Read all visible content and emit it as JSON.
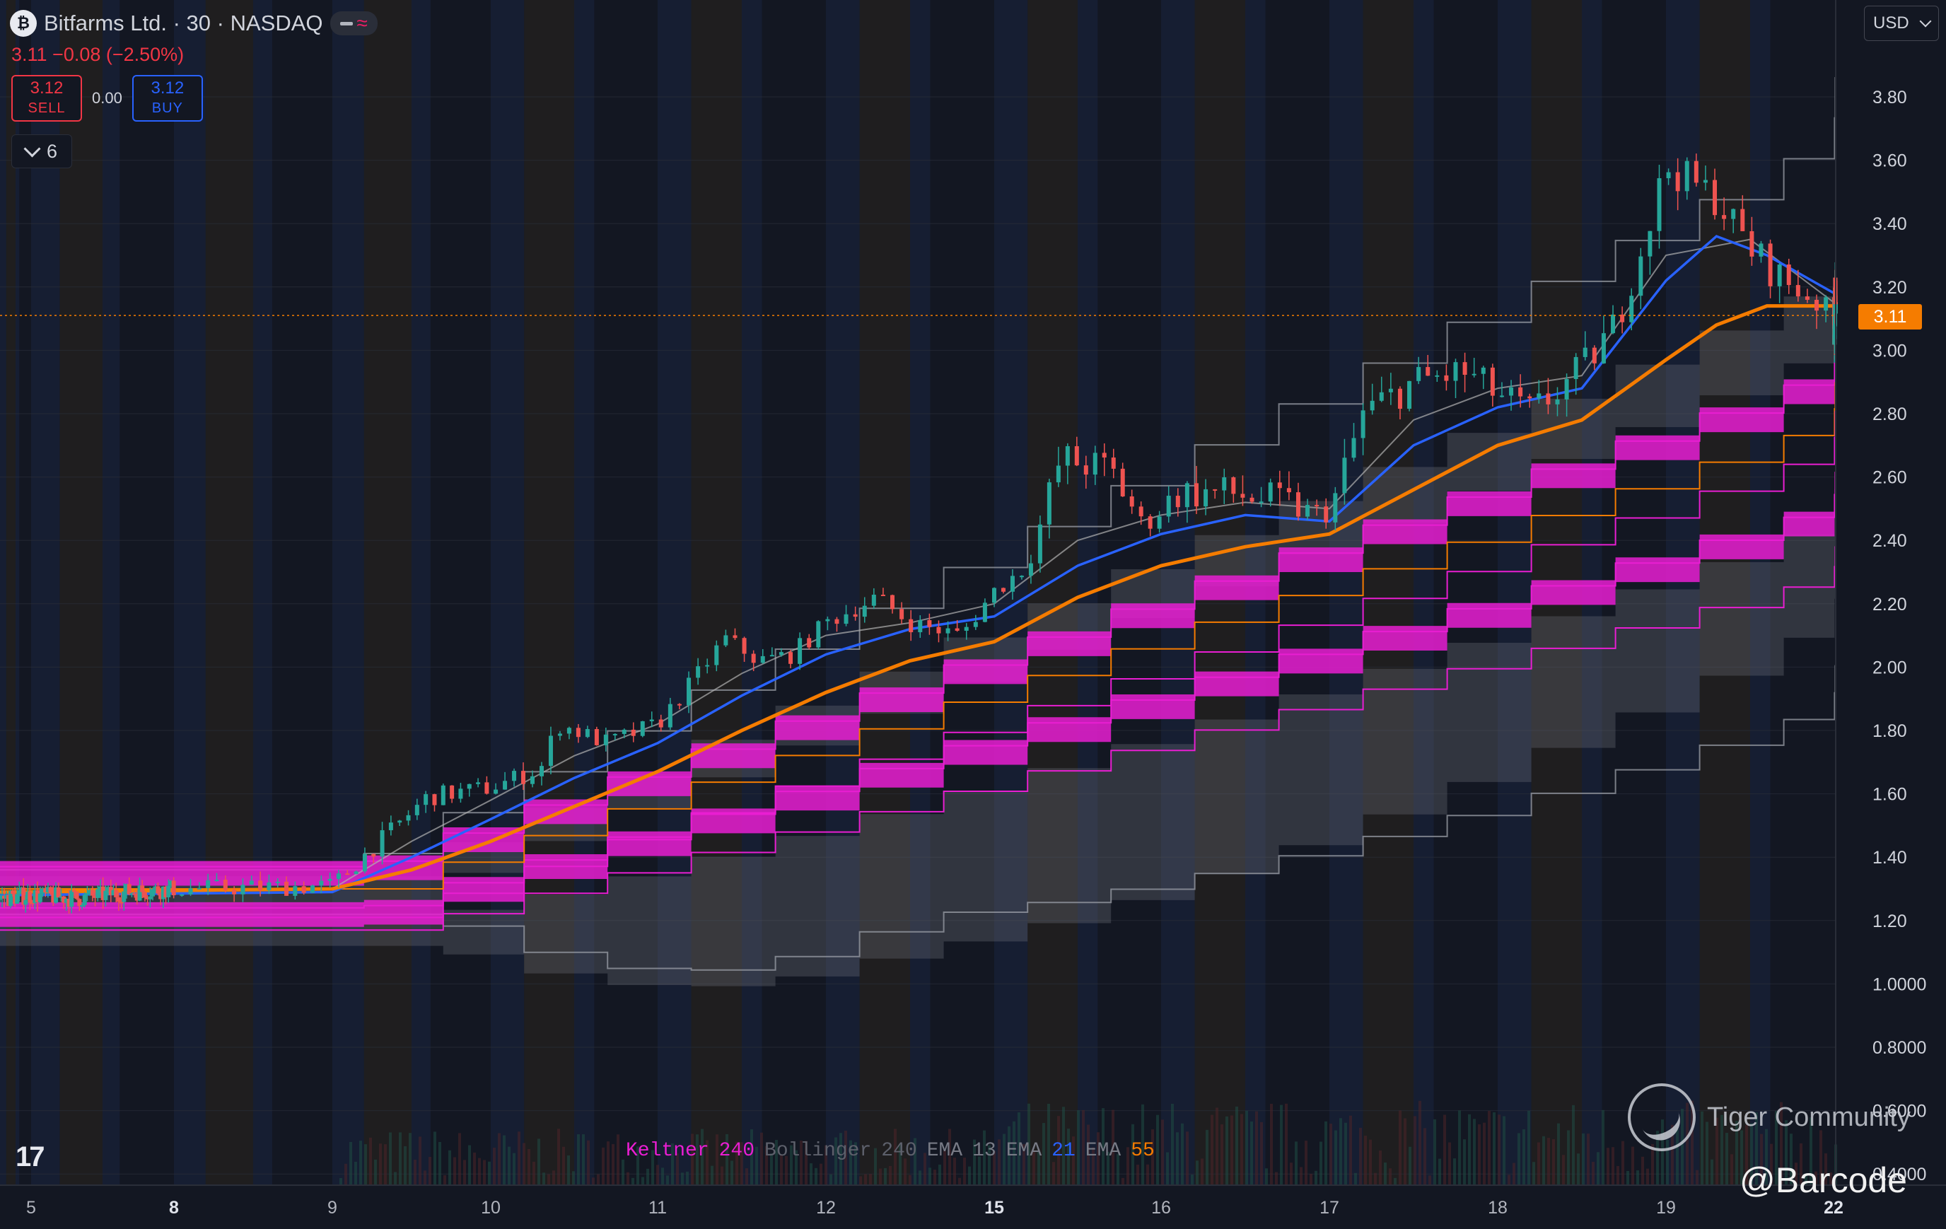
{
  "header": {
    "title": "Bitfarms Ltd. · 30 · NASDAQ",
    "change_text": "3.11 −0.08 (−2.50%)",
    "sell_price": "3.12",
    "sell_label": "SELL",
    "spread": "0.00",
    "buy_price": "3.12",
    "buy_label": "BUY",
    "indicators_count": "6",
    "currency": "USD"
  },
  "icons": {
    "logo": "bitfarms-logo-icon",
    "minus": "minus-icon",
    "wave": "approx-icon",
    "chevron": "chevron-down-icon",
    "tradingview": "tradingview-logo-icon",
    "tiger": "tiger-community-logo-icon"
  },
  "watermark": {
    "brand": "Tiger Community",
    "handle": "@Barcode"
  },
  "colors": {
    "background": "#131722",
    "up": "#26a69a",
    "down": "#ef5350",
    "keltner": "#e91ed2",
    "bollinger": "#9e9e9e",
    "ema13": "#b0b0b0",
    "ema21": "#2962ff",
    "ema55": "#f57c00",
    "last_price": "#f57c00",
    "session_odd": "#1a2440",
    "session_even": "#2a241e"
  },
  "legend": [
    {
      "name": "Keltner",
      "value": "240",
      "name_color": "#e91ed2",
      "value_color": "#e91ed2"
    },
    {
      "name": "Bollinger",
      "value": "240",
      "name_color": "#5d606b",
      "value_color": "#5d606b"
    },
    {
      "name": "EMA",
      "value": "13",
      "name_color": "#787b86",
      "value_color": "#787b86"
    },
    {
      "name": "EMA",
      "value": "21",
      "name_color": "#787b86",
      "value_color": "#2962ff"
    },
    {
      "name": "EMA",
      "value": "55",
      "name_color": "#787b86",
      "value_color": "#f57c00"
    }
  ],
  "chart_data": {
    "type": "candlestick",
    "symbol": "Bitfarms Ltd.",
    "interval": "30",
    "exchange": "NASDAQ",
    "last_price": "3.11",
    "x_tick_labels": [
      "5",
      "8",
      "9",
      "10",
      "11",
      "12",
      "15",
      "16",
      "17",
      "18",
      "19",
      "22"
    ],
    "x_bold_labels": [
      "8",
      "15",
      "22"
    ],
    "y_tick_labels": [
      "3.80",
      "3.60",
      "3.40",
      "3.20",
      "3.00",
      "2.80",
      "2.60",
      "2.40",
      "2.20",
      "2.00",
      "1.80",
      "1.60",
      "1.40",
      "1.20",
      "1.0000",
      "0.8000",
      "0.6000",
      "0.4000"
    ],
    "ylim": [
      0.4,
      3.96
    ],
    "grid": true,
    "overlays": [
      "Keltner 240",
      "Bollinger 240",
      "EMA 13",
      "EMA 21",
      "EMA 55"
    ],
    "price_path": [
      [
        4.2,
        1.27
      ],
      [
        5.0,
        1.28
      ],
      [
        6.0,
        1.27
      ],
      [
        7.0,
        1.29
      ],
      [
        8.0,
        1.3
      ],
      [
        9.0,
        1.31
      ],
      [
        9.3,
        1.45
      ],
      [
        9.6,
        1.59
      ],
      [
        10.0,
        1.62
      ],
      [
        10.3,
        1.68
      ],
      [
        10.4,
        1.82
      ],
      [
        10.7,
        1.76
      ],
      [
        11.0,
        1.82
      ],
      [
        11.2,
        1.95
      ],
      [
        11.4,
        2.09
      ],
      [
        11.6,
        2.02
      ],
      [
        11.8,
        2.04
      ],
      [
        12.0,
        2.14
      ],
      [
        12.3,
        2.22
      ],
      [
        12.5,
        2.14
      ],
      [
        12.8,
        2.1
      ],
      [
        13.0,
        2.24
      ],
      [
        13.2,
        2.32
      ],
      [
        13.4,
        2.66
      ],
      [
        13.7,
        2.62
      ],
      [
        13.9,
        2.44
      ],
      [
        14.1,
        2.55
      ],
      [
        14.4,
        2.55
      ],
      [
        14.7,
        2.52
      ],
      [
        15.0,
        2.48
      ],
      [
        15.2,
        2.8
      ],
      [
        15.5,
        2.9
      ],
      [
        15.8,
        2.93
      ],
      [
        16.0,
        2.86
      ],
      [
        16.2,
        2.8
      ],
      [
        16.5,
        2.94
      ],
      [
        16.7,
        3.08
      ],
      [
        16.9,
        3.4
      ],
      [
        17.0,
        3.58
      ],
      [
        17.3,
        3.48
      ],
      [
        17.5,
        3.32
      ],
      [
        17.7,
        3.22
      ],
      [
        17.9,
        3.16
      ],
      [
        18.0,
        3.06
      ],
      [
        18.3,
        3.1
      ],
      [
        18.6,
        3.18
      ],
      [
        18.9,
        3.14
      ],
      [
        19.0,
        3.11
      ]
    ],
    "ema13": [
      [
        4.2,
        1.28
      ],
      [
        9.0,
        1.3
      ],
      [
        9.5,
        1.45
      ],
      [
        10.0,
        1.58
      ],
      [
        10.5,
        1.72
      ],
      [
        11.0,
        1.82
      ],
      [
        11.5,
        1.98
      ],
      [
        12.0,
        2.1
      ],
      [
        12.5,
        2.14
      ],
      [
        13.0,
        2.2
      ],
      [
        13.5,
        2.4
      ],
      [
        14.0,
        2.48
      ],
      [
        14.5,
        2.52
      ],
      [
        15.0,
        2.5
      ],
      [
        15.5,
        2.78
      ],
      [
        16.0,
        2.88
      ],
      [
        16.5,
        2.92
      ],
      [
        17.0,
        3.3
      ],
      [
        17.5,
        3.35
      ],
      [
        18.0,
        3.15
      ],
      [
        18.5,
        3.14
      ],
      [
        19.0,
        3.14
      ]
    ],
    "ema21": [
      [
        4.2,
        1.28
      ],
      [
        9.0,
        1.29
      ],
      [
        9.5,
        1.4
      ],
      [
        10.0,
        1.52
      ],
      [
        10.5,
        1.65
      ],
      [
        11.0,
        1.76
      ],
      [
        11.5,
        1.91
      ],
      [
        12.0,
        2.04
      ],
      [
        12.5,
        2.12
      ],
      [
        13.0,
        2.16
      ],
      [
        13.5,
        2.32
      ],
      [
        14.0,
        2.42
      ],
      [
        14.5,
        2.48
      ],
      [
        15.0,
        2.46
      ],
      [
        15.5,
        2.7
      ],
      [
        16.0,
        2.82
      ],
      [
        16.5,
        2.88
      ],
      [
        17.0,
        3.22
      ],
      [
        17.3,
        3.36
      ],
      [
        17.6,
        3.3
      ],
      [
        18.0,
        3.18
      ],
      [
        18.5,
        3.14
      ],
      [
        19.0,
        3.14
      ]
    ],
    "ema55": [
      [
        4.2,
        1.29
      ],
      [
        9.0,
        1.3
      ],
      [
        9.5,
        1.36
      ],
      [
        10.0,
        1.45
      ],
      [
        10.5,
        1.56
      ],
      [
        11.0,
        1.67
      ],
      [
        11.5,
        1.8
      ],
      [
        12.0,
        1.92
      ],
      [
        12.5,
        2.02
      ],
      [
        13.0,
        2.08
      ],
      [
        13.5,
        2.22
      ],
      [
        14.0,
        2.32
      ],
      [
        14.5,
        2.38
      ],
      [
        15.0,
        2.42
      ],
      [
        15.5,
        2.56
      ],
      [
        16.0,
        2.7
      ],
      [
        16.5,
        2.78
      ],
      [
        17.0,
        2.97
      ],
      [
        17.3,
        3.08
      ],
      [
        17.6,
        3.14
      ],
      [
        18.0,
        3.14
      ],
      [
        18.5,
        3.16
      ],
      [
        19.0,
        3.15
      ]
    ],
    "keltner_bands": [
      {
        "start_value": 1.37,
        "end_value": 3.12
      },
      {
        "start_value": 1.24,
        "end_value": 2.66
      },
      {
        "start_value": 1.3,
        "end_value": 2.95
      },
      {
        "start_value": 1.21,
        "end_value": 2.86
      },
      {
        "start_value": 1.17,
        "end_value": 2.42
      }
    ],
    "bollinger": {
      "upper_start": 1.36,
      "upper_end": 3.94,
      "mid_start": 1.29,
      "mid_end": 3.4,
      "lower_start": 1.22,
      "lower_end": 2.06,
      "channel_upper_start": 1.34,
      "channel_upper_end": 3.45,
      "channel_lower_start": 1.25,
      "channel_lower_end": 3.22,
      "low_channel_upper_start": 1.22,
      "low_channel_upper_end": 2.65,
      "low_channel_lower_start": 1.12,
      "low_channel_lower_end": 2.42
    }
  }
}
